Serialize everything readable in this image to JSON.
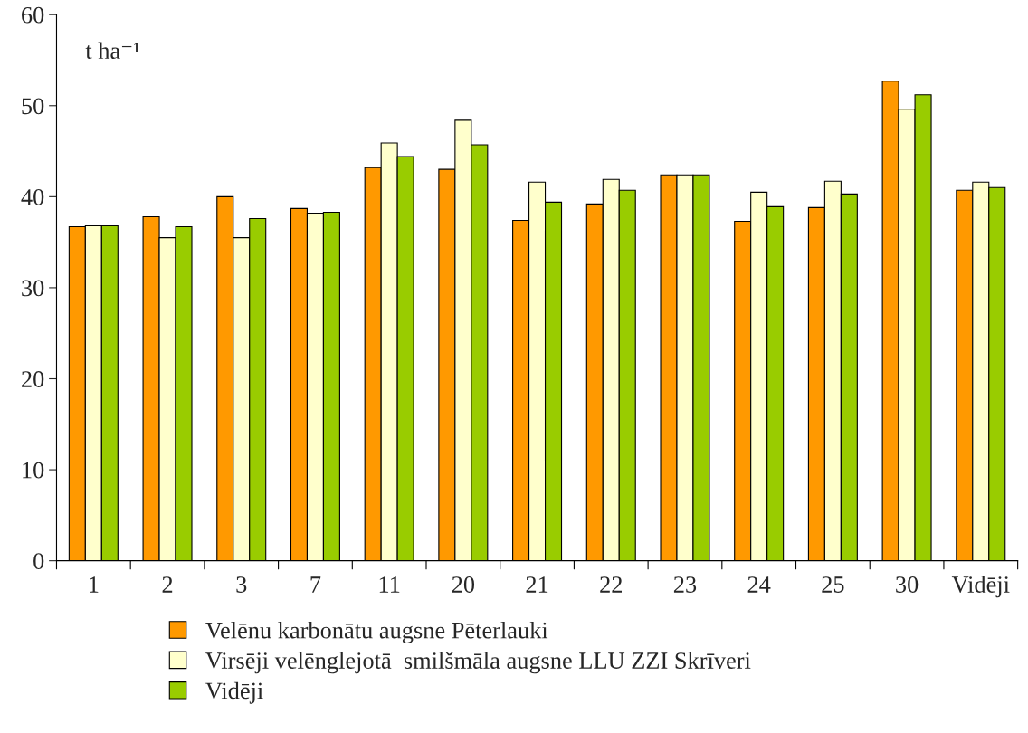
{
  "chart_data": {
    "type": "bar",
    "ylabel": "t ha⁻¹",
    "categories": [
      "1",
      "2",
      "3",
      "7",
      "11",
      "20",
      "21",
      "22",
      "23",
      "24",
      "25",
      "30",
      "Vidēji"
    ],
    "series": [
      {
        "name": "Velēnu karbonātu augsne Pēterlauki",
        "color": "#ff9900",
        "values": [
          36.7,
          37.8,
          40.0,
          38.7,
          43.2,
          43.0,
          37.4,
          39.2,
          42.4,
          37.3,
          38.8,
          52.7,
          40.7
        ]
      },
      {
        "name": "Virsēji velēnglejotā  smilšmāla augsne LLU ZZI Skrīveri",
        "color": "#ffffcc",
        "values": [
          36.8,
          35.5,
          35.5,
          38.2,
          45.9,
          48.4,
          41.6,
          41.9,
          42.4,
          40.5,
          41.7,
          49.6,
          41.6
        ]
      },
      {
        "name": "Vidēji",
        "color": "#99cc00",
        "values": [
          36.8,
          36.7,
          37.6,
          38.3,
          44.4,
          45.7,
          39.4,
          40.7,
          42.4,
          38.9,
          40.3,
          51.2,
          41.0
        ]
      }
    ],
    "ylim": [
      0,
      60
    ],
    "yticks": [
      0,
      10,
      20,
      30,
      40,
      50,
      60
    ],
    "grid": false,
    "legend": "bottom"
  }
}
